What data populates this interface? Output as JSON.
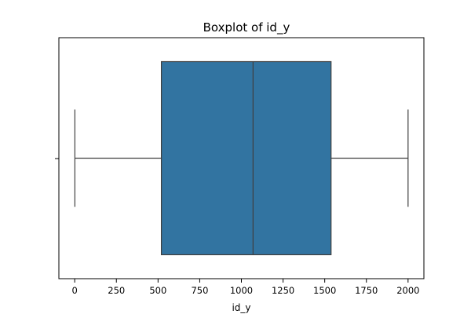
{
  "chart_data": {
    "type": "boxplot",
    "title": "Boxplot of id_y",
    "xlabel": "id_y",
    "ylabel": "",
    "xlim": [
      -95,
      2095
    ],
    "xticks": [
      0,
      250,
      500,
      750,
      1000,
      1250,
      1500,
      1750,
      2000
    ],
    "grid": false,
    "legend": "none",
    "box": {
      "min": 1,
      "q1": 520,
      "median": 1070,
      "q3": 1538,
      "max": 2000
    },
    "colors": {
      "box_fill": "#3274a1",
      "line": "#404040"
    }
  }
}
